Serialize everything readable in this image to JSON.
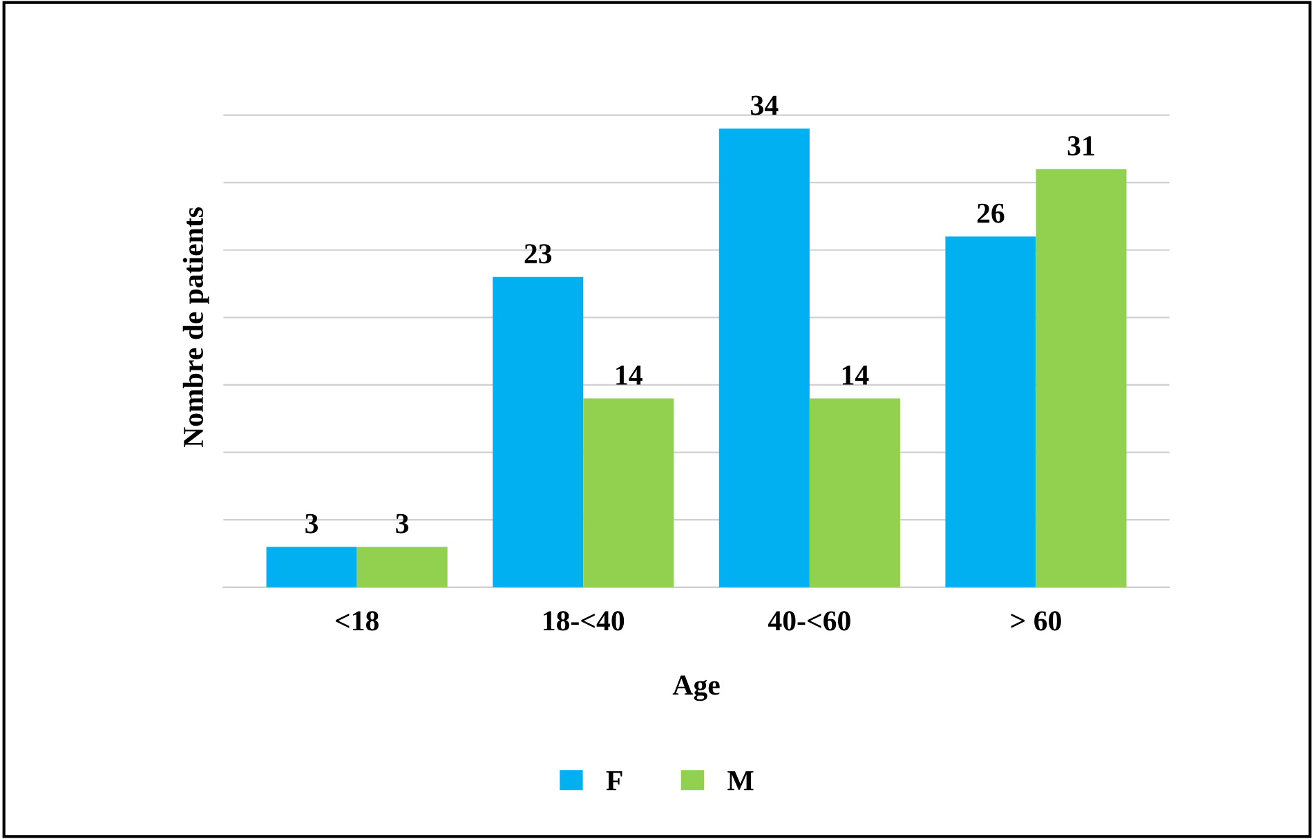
{
  "chart_data": {
    "type": "bar",
    "xlabel": "Age",
    "ylabel": "Nombre de patients",
    "categories": [
      "<18",
      "18-<40",
      "40-<60",
      "> 60"
    ],
    "series": [
      {
        "name": "F",
        "color": "#00b0f0",
        "values": [
          3,
          23,
          34,
          26
        ]
      },
      {
        "name": "M",
        "color": "#92d050",
        "values": [
          3,
          14,
          14,
          31
        ]
      }
    ],
    "data_labels": true,
    "grid": "y",
    "legend": "bottom",
    "tick_labels": "x"
  }
}
